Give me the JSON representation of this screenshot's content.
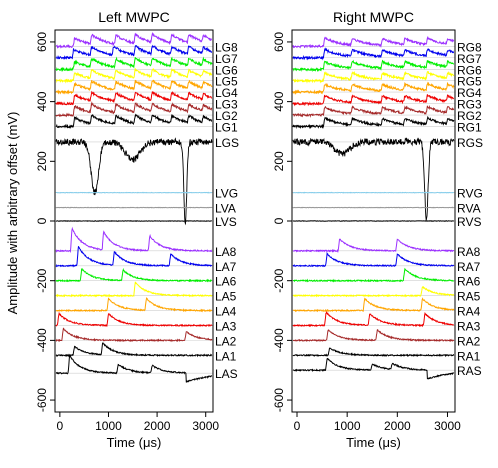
{
  "figure": {
    "ylabel": "Amplitude with arbitrary offset (mV)"
  },
  "chart_data": [
    {
      "type": "line",
      "title": "Left MWPC",
      "xlabel": "Time (μs)",
      "xlim": [
        -100,
        3150
      ],
      "ylim": [
        -640,
        640
      ],
      "x_ticks": [
        0,
        1000,
        2000,
        3000
      ],
      "y_ticks": [
        -600,
        -400,
        -200,
        0,
        200,
        400,
        600
      ],
      "series": [
        {
          "name": "LG8",
          "baseline": 585,
          "color": "#9b30ff",
          "kind": "gain",
          "events": [
            [
              300,
              28
            ],
            [
              650,
              30
            ],
            [
              1150,
              30
            ],
            [
              1550,
              30
            ],
            [
              1900,
              28
            ],
            [
              2300,
              28
            ],
            [
              2650,
              28
            ],
            [
              2950,
              22
            ]
          ]
        },
        {
          "name": "LG7",
          "baseline": 547,
          "color": "#0000ee",
          "kind": "gain",
          "events": [
            [
              280,
              28
            ],
            [
              650,
              28
            ],
            [
              1100,
              30
            ],
            [
              1550,
              30
            ],
            [
              1900,
              28
            ],
            [
              2300,
              26
            ],
            [
              2650,
              26
            ],
            [
              2950,
              20
            ]
          ]
        },
        {
          "name": "LG6",
          "baseline": 508,
          "color": "#00ee00",
          "kind": "gain",
          "events": [
            [
              300,
              26
            ],
            [
              650,
              28
            ],
            [
              1150,
              28
            ],
            [
              1550,
              28
            ],
            [
              1900,
              26
            ],
            [
              2300,
              26
            ],
            [
              2650,
              24
            ],
            [
              2950,
              20
            ]
          ]
        },
        {
          "name": "LG5",
          "baseline": 470,
          "color": "#ffff00",
          "kind": "gain",
          "events": [
            [
              300,
              26
            ],
            [
              650,
              28
            ],
            [
              1150,
              28
            ],
            [
              1550,
              28
            ],
            [
              1900,
              26
            ],
            [
              2300,
              26
            ],
            [
              2650,
              24
            ],
            [
              2950,
              20
            ]
          ]
        },
        {
          "name": "LG4",
          "baseline": 432,
          "color": "#ffa500",
          "kind": "gain",
          "events": [
            [
              300,
              28
            ],
            [
              650,
              28
            ],
            [
              1150,
              28
            ],
            [
              1550,
              28
            ],
            [
              1900,
              26
            ],
            [
              2300,
              26
            ],
            [
              2650,
              24
            ],
            [
              2950,
              20
            ]
          ]
        },
        {
          "name": "LG3",
          "baseline": 393,
          "color": "#ee0000",
          "kind": "gain",
          "events": [
            [
              300,
              30
            ],
            [
              650,
              28
            ],
            [
              1150,
              28
            ],
            [
              1550,
              28
            ],
            [
              1900,
              26
            ],
            [
              2300,
              26
            ],
            [
              2650,
              24
            ],
            [
              2950,
              20
            ]
          ]
        },
        {
          "name": "LG2",
          "baseline": 355,
          "color": "#a52a2a",
          "kind": "gain",
          "events": [
            [
              300,
              30
            ],
            [
              650,
              28
            ],
            [
              1150,
              28
            ],
            [
              1550,
              28
            ],
            [
              1900,
              26
            ],
            [
              2300,
              26
            ],
            [
              2650,
              24
            ],
            [
              2950,
              20
            ]
          ]
        },
        {
          "name": "LG1",
          "baseline": 317,
          "color": "#000000",
          "kind": "gain",
          "events": [
            [
              300,
              30
            ],
            [
              650,
              28
            ],
            [
              1150,
              28
            ],
            [
              1550,
              28
            ],
            [
              1900,
              26
            ],
            [
              2300,
              26
            ],
            [
              2650,
              24
            ],
            [
              2950,
              20
            ]
          ]
        },
        {
          "name": "LGS",
          "baseline": 265,
          "color": "#000000",
          "kind": "sum",
          "dips": [
            [
              720,
              -170,
              150
            ],
            [
              1500,
              -60,
              300
            ],
            [
              2580,
              -270,
              60
            ]
          ]
        },
        {
          "name": "LVG",
          "baseline": 95,
          "color": "#87ceeb",
          "kind": "flat"
        },
        {
          "name": "LVA",
          "baseline": 45,
          "color": "#999999",
          "kind": "flat"
        },
        {
          "name": "LVS",
          "baseline": 0,
          "color": "#000000",
          "kind": "flat"
        },
        {
          "name": "LA8",
          "baseline": -100,
          "color": "#9b30ff",
          "kind": "anode",
          "events": [
            [
              250,
              75
            ],
            [
              900,
              60
            ],
            [
              1850,
              50
            ]
          ]
        },
        {
          "name": "LA7",
          "baseline": -150,
          "color": "#0000ee",
          "kind": "anode",
          "events": [
            [
              380,
              65
            ],
            [
              1120,
              45
            ],
            [
              2280,
              40
            ]
          ]
        },
        {
          "name": "LA6",
          "baseline": -200,
          "color": "#00ee00",
          "kind": "anode",
          "events": [
            [
              450,
              40
            ],
            [
              1300,
              35
            ]
          ]
        },
        {
          "name": "LA5",
          "baseline": -250,
          "color": "#ffff00",
          "kind": "anode",
          "events": [
            [
              1550,
              45
            ]
          ]
        },
        {
          "name": "LA4",
          "baseline": -300,
          "color": "#ffa500",
          "kind": "anode",
          "events": [
            [
              1000,
              40
            ],
            [
              1780,
              40
            ]
          ]
        },
        {
          "name": "LA3",
          "baseline": -350,
          "color": "#ee0000",
          "kind": "anode",
          "events": [
            [
              -20,
              40
            ],
            [
              1000,
              40
            ]
          ]
        },
        {
          "name": "LA2",
          "baseline": -400,
          "color": "#a52a2a",
          "kind": "anode",
          "events": [
            [
              70,
              40
            ],
            [
              2600,
              30
            ]
          ]
        },
        {
          "name": "LA1",
          "baseline": -450,
          "color": "#000000",
          "kind": "anode",
          "events": [
            [
              300,
              30
            ],
            [
              880,
              40
            ]
          ]
        },
        {
          "name": "LAS",
          "baseline": -510,
          "color": "#000000",
          "kind": "anode",
          "events": [
            [
              200,
              60
            ],
            [
              1200,
              30
            ],
            [
              1900,
              25
            ]
          ],
          "dip": [
            2600,
            -30
          ]
        }
      ]
    },
    {
      "type": "line",
      "title": "Right MWPC",
      "xlabel": "Time (μs)",
      "xlim": [
        -100,
        3150
      ],
      "ylim": [
        -640,
        640
      ],
      "x_ticks": [
        0,
        1000,
        2000,
        3000
      ],
      "y_ticks": [
        -600,
        -400,
        -200,
        0,
        200,
        400,
        600
      ],
      "series": [
        {
          "name": "RG8",
          "baseline": 585,
          "color": "#9b30ff",
          "kind": "gain",
          "events": [
            [
              550,
              28
            ],
            [
              1100,
              22
            ],
            [
              1700,
              22
            ],
            [
              2150,
              20
            ],
            [
              2600,
              22
            ],
            [
              3000,
              18
            ]
          ]
        },
        {
          "name": "RG7",
          "baseline": 547,
          "color": "#0000ee",
          "kind": "gain",
          "events": [
            [
              550,
              28
            ],
            [
              1100,
              22
            ],
            [
              1700,
              22
            ],
            [
              2150,
              20
            ],
            [
              2600,
              22
            ],
            [
              3000,
              18
            ]
          ]
        },
        {
          "name": "RG6",
          "baseline": 508,
          "color": "#00ee00",
          "kind": "gain",
          "events": [
            [
              550,
              26
            ],
            [
              1100,
              22
            ],
            [
              1700,
              22
            ],
            [
              2150,
              20
            ],
            [
              2600,
              22
            ],
            [
              3000,
              18
            ]
          ]
        },
        {
          "name": "RG5",
          "baseline": 470,
          "color": "#ffff00",
          "kind": "gain",
          "events": [
            [
              550,
              26
            ],
            [
              1100,
              22
            ],
            [
              1700,
              22
            ],
            [
              2150,
              20
            ],
            [
              2600,
              22
            ],
            [
              3000,
              18
            ]
          ]
        },
        {
          "name": "RG4",
          "baseline": 432,
          "color": "#ffa500",
          "kind": "gain",
          "events": [
            [
              550,
              26
            ],
            [
              1100,
              22
            ],
            [
              1700,
              22
            ],
            [
              2150,
              20
            ],
            [
              2600,
              22
            ],
            [
              3000,
              18
            ]
          ]
        },
        {
          "name": "RG3",
          "baseline": 393,
          "color": "#ee0000",
          "kind": "gain",
          "events": [
            [
              550,
              26
            ],
            [
              1100,
              22
            ],
            [
              1700,
              22
            ],
            [
              2150,
              20
            ],
            [
              2600,
              22
            ],
            [
              3000,
              18
            ]
          ]
        },
        {
          "name": "RG2",
          "baseline": 355,
          "color": "#a52a2a",
          "kind": "gain",
          "events": [
            [
              550,
              26
            ],
            [
              1100,
              22
            ],
            [
              1700,
              22
            ],
            [
              2150,
              20
            ],
            [
              2600,
              22
            ],
            [
              3000,
              18
            ]
          ]
        },
        {
          "name": "RG1",
          "baseline": 317,
          "color": "#000000",
          "kind": "gain",
          "events": [
            [
              550,
              28
            ],
            [
              1100,
              22
            ],
            [
              1700,
              22
            ],
            [
              2150,
              20
            ],
            [
              2600,
              22
            ],
            [
              3000,
              18
            ]
          ]
        },
        {
          "name": "RGS",
          "baseline": 265,
          "color": "#000000",
          "kind": "sum",
          "dips": [
            [
              900,
              -40,
              300
            ],
            [
              2580,
              -255,
              70
            ]
          ]
        },
        {
          "name": "RVG",
          "baseline": 95,
          "color": "#87ceeb",
          "kind": "flat"
        },
        {
          "name": "RVA",
          "baseline": 45,
          "color": "#999999",
          "kind": "flat"
        },
        {
          "name": "RVS",
          "baseline": 0,
          "color": "#000000",
          "kind": "flat"
        },
        {
          "name": "RA8",
          "baseline": -100,
          "color": "#9b30ff",
          "kind": "anode",
          "events": [
            [
              850,
              40
            ],
            [
              2000,
              40
            ]
          ]
        },
        {
          "name": "RA7",
          "baseline": -150,
          "color": "#0000ee",
          "kind": "anode",
          "events": [
            [
              600,
              40
            ],
            [
              2000,
              40
            ]
          ]
        },
        {
          "name": "RA6",
          "baseline": -200,
          "color": "#00ee00",
          "kind": "anode",
          "events": [
            [
              2150,
              40
            ]
          ]
        },
        {
          "name": "RA5",
          "baseline": -250,
          "color": "#ffff00",
          "kind": "anode",
          "events": [
            [
              2500,
              30
            ]
          ]
        },
        {
          "name": "RA4",
          "baseline": -300,
          "color": "#ffa500",
          "kind": "anode",
          "events": [
            [
              1350,
              40
            ],
            [
              2500,
              40
            ]
          ]
        },
        {
          "name": "RA3",
          "baseline": -350,
          "color": "#ee0000",
          "kind": "anode",
          "events": [
            [
              580,
              45
            ],
            [
              1450,
              40
            ],
            [
              2550,
              40
            ]
          ]
        },
        {
          "name": "RA2",
          "baseline": -400,
          "color": "#a52a2a",
          "kind": "anode",
          "events": [
            [
              620,
              35
            ],
            [
              1600,
              35
            ]
          ]
        },
        {
          "name": "RA1",
          "baseline": -450,
          "color": "#000000",
          "kind": "anode",
          "events": [
            [
              650,
              25
            ]
          ]
        },
        {
          "name": "RAS",
          "baseline": -500,
          "color": "#000000",
          "kind": "anode",
          "events": [
            [
              600,
              40
            ],
            [
              1500,
              20
            ],
            [
              1900,
              20
            ]
          ],
          "dip": [
            2600,
            -30
          ]
        }
      ]
    }
  ]
}
